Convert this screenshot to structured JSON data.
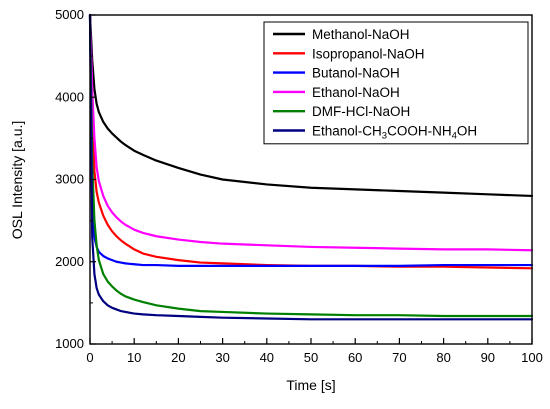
{
  "chart_data": {
    "type": "line",
    "title": "",
    "xlabel": "Time [s]",
    "ylabel": "OSL Intensity [a.u.]",
    "xlim": [
      0,
      100
    ],
    "ylim": [
      1000,
      5000
    ],
    "x_ticks": [
      0,
      10,
      20,
      30,
      40,
      50,
      60,
      70,
      80,
      90,
      100
    ],
    "y_ticks": [
      1000,
      2000,
      3000,
      4000,
      5000
    ],
    "x_tick_labels": [
      "0",
      "10",
      "20",
      "30",
      "40",
      "50",
      "60",
      "70",
      "80",
      "90",
      "100"
    ],
    "y_tick_labels": [
      "1000",
      "2000",
      "3000",
      "4000",
      "5000"
    ],
    "grid": false,
    "legend_position": "top-right",
    "x": [
      0,
      0.5,
      1,
      1.5,
      2,
      3,
      4,
      5,
      6,
      7,
      8,
      10,
      12,
      15,
      20,
      25,
      30,
      40,
      50,
      60,
      70,
      80,
      90,
      100
    ],
    "series": [
      {
        "name": "Methanol-NaOH",
        "color": "#000000",
        "values": [
          5000,
          4450,
          4100,
          3920,
          3820,
          3700,
          3620,
          3560,
          3510,
          3460,
          3420,
          3350,
          3300,
          3230,
          3140,
          3060,
          3000,
          2940,
          2900,
          2880,
          2860,
          2840,
          2820,
          2800
        ]
      },
      {
        "name": "Isopropanol-NaOH",
        "color": "#ff0000",
        "values": [
          5000,
          3800,
          3100,
          2850,
          2720,
          2560,
          2450,
          2370,
          2310,
          2260,
          2220,
          2150,
          2100,
          2060,
          2020,
          1990,
          1980,
          1960,
          1950,
          1950,
          1940,
          1940,
          1930,
          1920
        ]
      },
      {
        "name": "Butanol-NaOH",
        "color": "#0000ff",
        "values": [
          5000,
          2700,
          2300,
          2180,
          2120,
          2070,
          2040,
          2020,
          2000,
          1990,
          1980,
          1970,
          1960,
          1960,
          1950,
          1950,
          1950,
          1950,
          1950,
          1950,
          1950,
          1960,
          1960,
          1960
        ]
      },
      {
        "name": "Ethanol-NaOH",
        "color": "#ff00ff",
        "values": [
          5000,
          4100,
          3500,
          3150,
          2980,
          2800,
          2680,
          2600,
          2540,
          2490,
          2450,
          2390,
          2350,
          2310,
          2270,
          2240,
          2220,
          2200,
          2180,
          2170,
          2160,
          2150,
          2150,
          2140
        ]
      },
      {
        "name": "DMF-HCl-NaOH",
        "color": "#008000",
        "values": [
          5000,
          3200,
          2500,
          2200,
          2020,
          1850,
          1760,
          1700,
          1650,
          1610,
          1580,
          1540,
          1510,
          1470,
          1430,
          1400,
          1390,
          1370,
          1360,
          1350,
          1350,
          1340,
          1340,
          1340
        ]
      },
      {
        "name": "Ethanol-CH3COOH-NH4OH",
        "color": "#000080",
        "values": [
          5000,
          2300,
          1850,
          1680,
          1600,
          1520,
          1470,
          1440,
          1420,
          1400,
          1390,
          1370,
          1360,
          1350,
          1340,
          1330,
          1320,
          1310,
          1300,
          1300,
          1300,
          1300,
          1300,
          1300
        ]
      }
    ]
  }
}
